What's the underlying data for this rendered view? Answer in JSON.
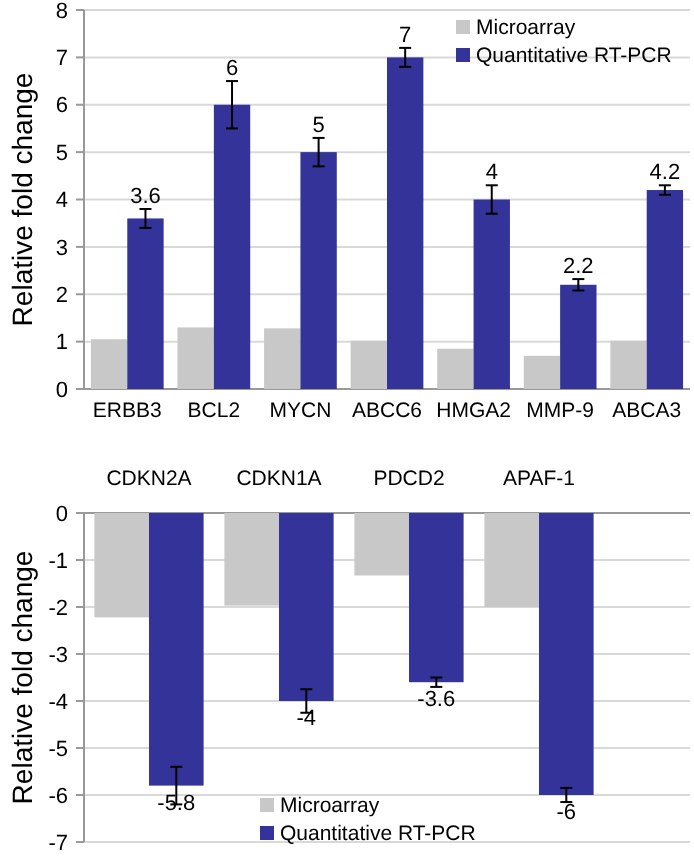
{
  "chart_data": [
    {
      "type": "bar",
      "ylabel": "Relative fold change",
      "categories": [
        "ERBB3",
        "BCL2",
        "MYCN",
        "ABCC6",
        "HMGA2",
        "MMP-9",
        "ABCA3"
      ],
      "series": [
        {
          "name": "Microarray",
          "color": "#c8c8c8",
          "values": [
            1.05,
            1.3,
            1.28,
            1.02,
            0.85,
            0.7,
            1.02
          ]
        },
        {
          "name": "Quantitative RT-PCR",
          "color": "#333399",
          "values": [
            3.6,
            6,
            5,
            7,
            4,
            2.2,
            4.2
          ],
          "errors": [
            0.2,
            0.5,
            0.3,
            0.2,
            0.3,
            0.12,
            0.1
          ],
          "value_labels": [
            "3.6",
            "6",
            "5",
            "7",
            "4",
            "2.2",
            "4.2"
          ]
        }
      ],
      "ylim": [
        0,
        8
      ],
      "yticks": [
        0,
        1,
        2,
        3,
        4,
        5,
        6,
        7,
        8
      ],
      "grid": "y",
      "legend": "top right"
    },
    {
      "type": "bar",
      "ylabel": "Relative fold change",
      "categories": [
        "CDKN2A",
        "CDKN1A",
        "PDCD2",
        "APAF-1"
      ],
      "series": [
        {
          "name": "Microarray",
          "color": "#c8c8c8",
          "values": [
            -2.22,
            -1.97,
            -1.33,
            -2.0
          ]
        },
        {
          "name": "Quantitative RT-PCR",
          "color": "#333399",
          "values": [
            -5.8,
            -4,
            -3.6,
            -6
          ],
          "errors": [
            0.4,
            0.25,
            0.1,
            0.15
          ],
          "value_labels": [
            "-5.8",
            "-4",
            "-3.6",
            "-6"
          ]
        }
      ],
      "ylim": [
        -7,
        0
      ],
      "yticks": [
        0,
        -1,
        -2,
        -3,
        -4,
        -5,
        -6,
        -7
      ],
      "grid": "y",
      "legend": "bottom"
    }
  ]
}
